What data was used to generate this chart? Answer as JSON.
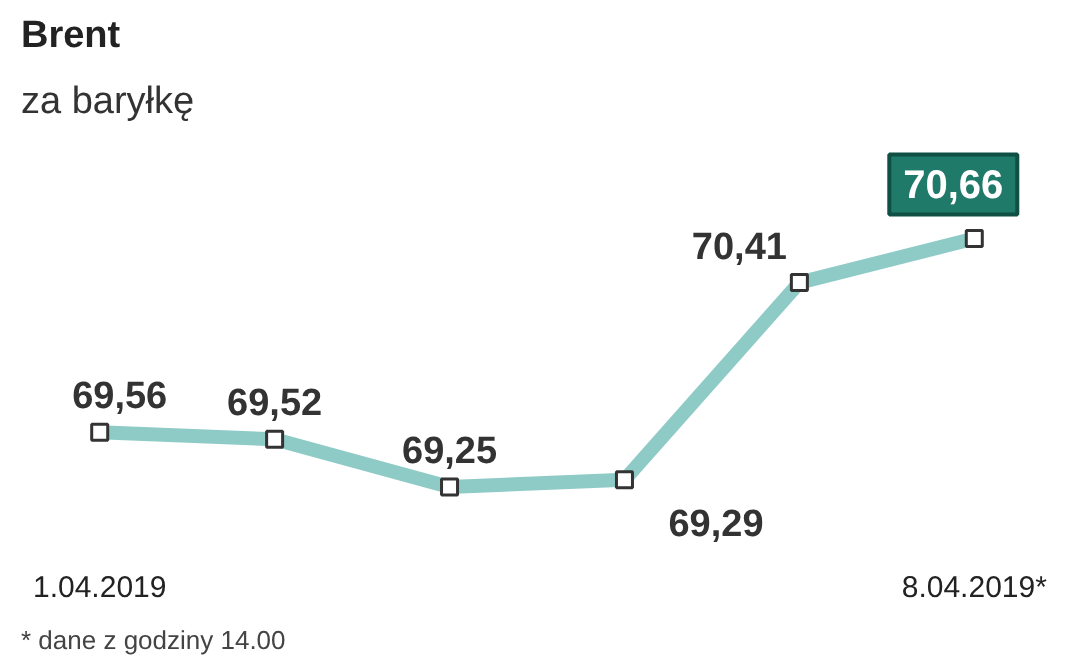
{
  "chart_data": {
    "type": "line",
    "title": "Brent",
    "subtitle": "za baryłkę",
    "categories": [
      "1.04.2019",
      null,
      null,
      null,
      null,
      "8.04.2019*"
    ],
    "series": [
      {
        "color": "#8ecbc6",
        "values": [
          69.56,
          69.52,
          69.25,
          69.29,
          70.41,
          70.66
        ],
        "value_labels": [
          "69,56",
          "69,52",
          "69,25",
          "69,29",
          "70,41",
          "70,66"
        ]
      }
    ],
    "marker": "square",
    "grid": false,
    "annotations": [
      "* dane z godziny 14.00"
    ]
  }
}
